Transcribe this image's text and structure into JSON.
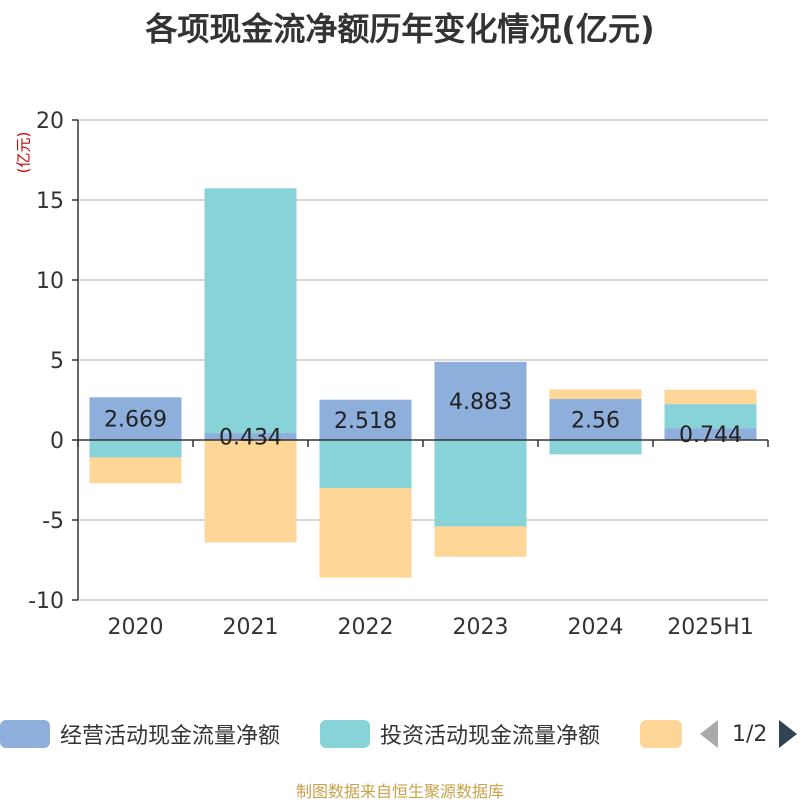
{
  "title": "各项现金流净额历年变化情况(亿元)",
  "unit_label": "(亿元)",
  "source": "制图数据来自恒生聚源数据库",
  "legend": {
    "items": [
      {
        "label": "经营活动现金流量净额",
        "color": "#8eaedb"
      },
      {
        "label": "投资活动现金流量净额",
        "color": "#88d3d8"
      },
      {
        "label": "",
        "color": "#fed698"
      }
    ],
    "page": "1/2"
  },
  "chart_data": {
    "type": "bar",
    "stacked": true,
    "categories": [
      "2020",
      "2021",
      "2022",
      "2023",
      "2024",
      "2025H1"
    ],
    "ylim": [
      -10,
      20
    ],
    "yticks": [
      -10,
      -5,
      0,
      5,
      10,
      15,
      20
    ],
    "ytick_labels": [
      "-10",
      "-5",
      "0",
      "5",
      "10",
      "15",
      "20"
    ],
    "grid": true,
    "legend_position": "bottom",
    "series": [
      {
        "name": "经营活动现金流量净额",
        "color": "#8eaedb",
        "values": [
          2.669,
          0.434,
          2.518,
          4.883,
          2.56,
          0.744
        ],
        "labels": [
          "2.669",
          "0.434",
          "2.518",
          "4.883",
          "2.56",
          "0.744"
        ]
      },
      {
        "name": "投资活动现金流量净额",
        "color": "#88d3d8",
        "values": [
          -1.1,
          15.3,
          -3.0,
          -5.4,
          -0.9,
          1.5
        ]
      },
      {
        "color": "#fed698",
        "values": [
          -1.6,
          -6.4,
          -5.6,
          -1.9,
          0.6,
          0.9
        ]
      }
    ]
  }
}
